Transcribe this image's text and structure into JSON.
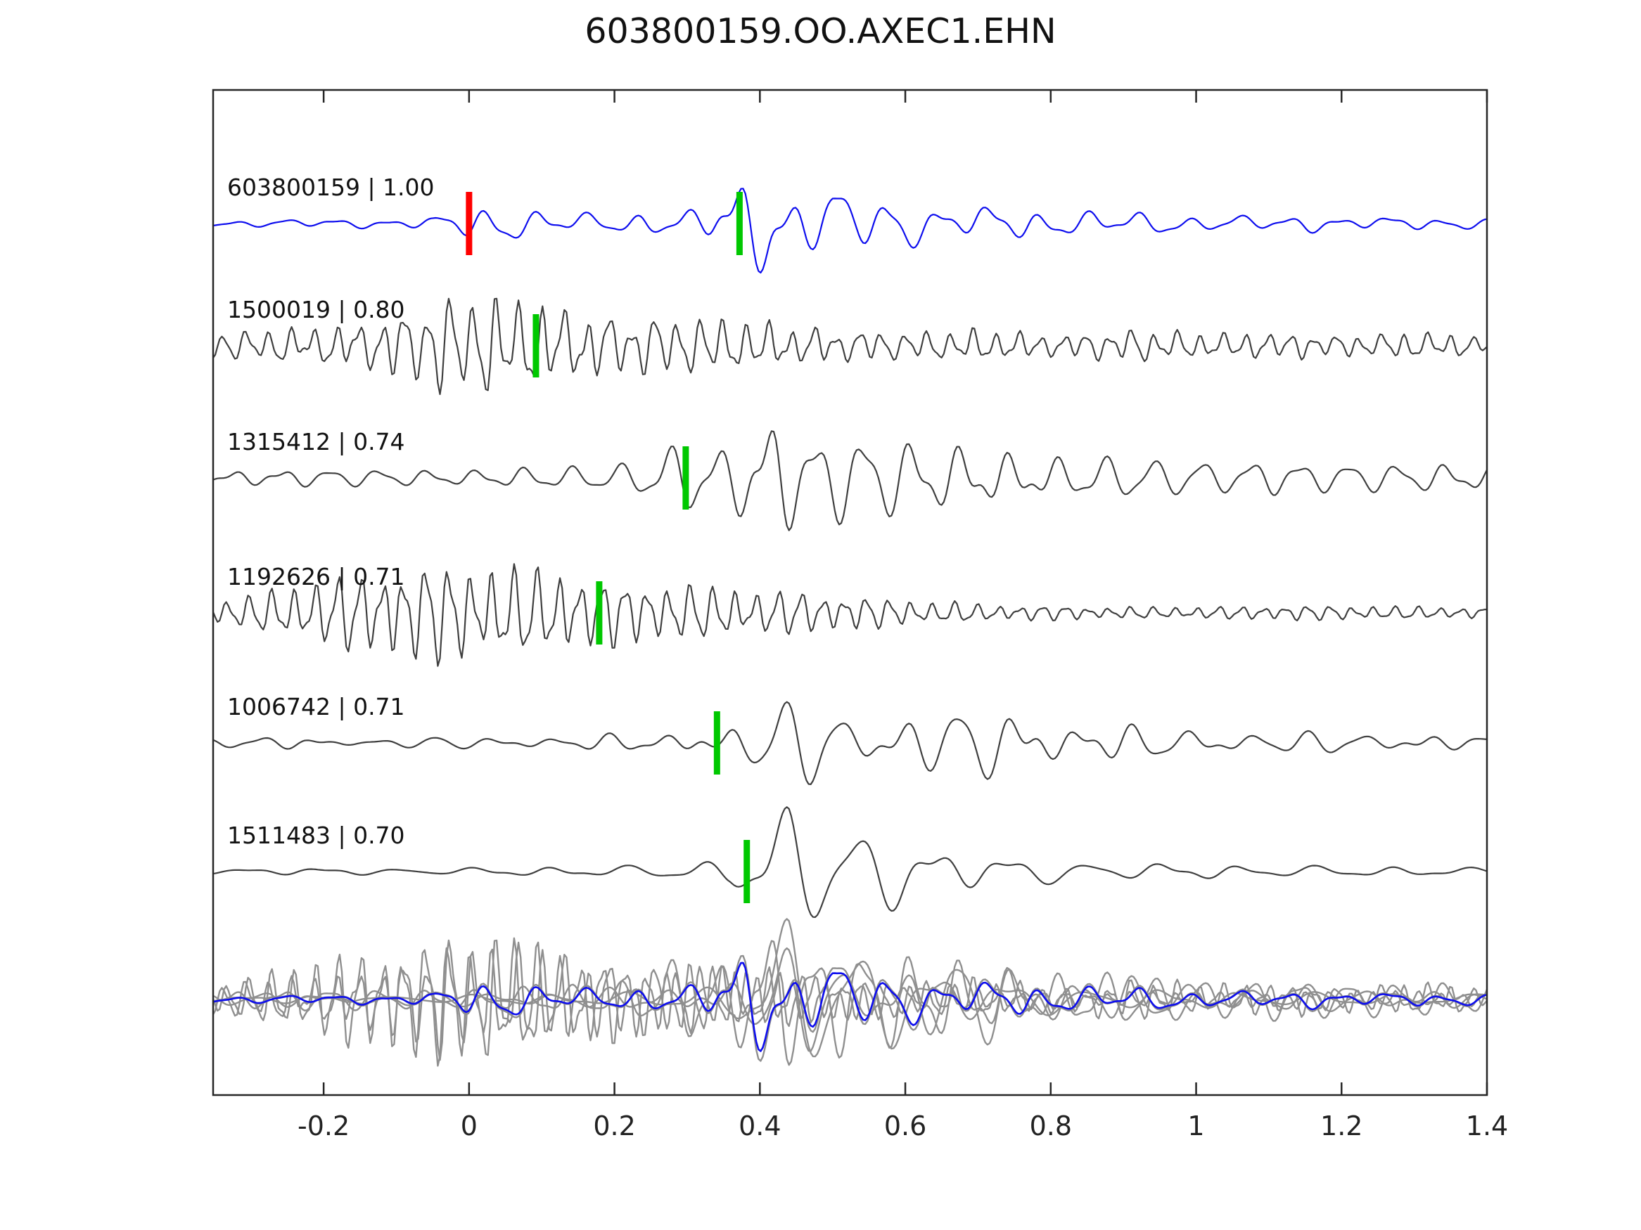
{
  "chart_data": {
    "type": "line",
    "title": "603800159.OO.AXEC1.EHN",
    "xlabel": "",
    "ylabel": "",
    "grid": false,
    "legend": "none",
    "axis": {
      "xlim": [
        -0.352,
        1.4
      ],
      "ticks": [
        {
          "value": -0.2,
          "label": "-0.2"
        },
        {
          "value": 0.0,
          "label": "0"
        },
        {
          "value": 0.2,
          "label": "0.2"
        },
        {
          "value": 0.4,
          "label": "0.4"
        },
        {
          "value": 0.6,
          "label": "0.6"
        },
        {
          "value": 0.8,
          "label": "0.8"
        },
        {
          "value": 1.0,
          "label": "1"
        },
        {
          "value": 1.2,
          "label": "1.2"
        },
        {
          "value": 1.4,
          "label": "1.4"
        }
      ]
    },
    "colors": {
      "template_trace": "#0d0dee",
      "detection_trace": "#3f3f3f",
      "overlay_gray": "#8f8f8f",
      "pick_green": "#00c800",
      "pick_red": "#ff0000",
      "spine": "#262626"
    },
    "traces": [
      {
        "id": "603800159",
        "cc": "1.00",
        "label": "603800159 | 1.00",
        "color": "#0d0dee",
        "freq": 14.5,
        "phase": -0.72,
        "noise": 0.55,
        "seed": 7,
        "picks": [
          {
            "x": 0.0,
            "color": "#ff0000"
          },
          {
            "x": 0.372,
            "color": "#00c800"
          }
        ],
        "envelope": [
          [
            -0.352,
            5
          ],
          [
            -0.25,
            7
          ],
          [
            -0.18,
            9
          ],
          [
            -0.12,
            7
          ],
          [
            -0.05,
            9
          ],
          [
            0.0,
            30
          ],
          [
            0.05,
            32
          ],
          [
            0.1,
            28
          ],
          [
            0.15,
            20
          ],
          [
            0.2,
            16
          ],
          [
            0.24,
            22
          ],
          [
            0.28,
            14
          ],
          [
            0.32,
            30
          ],
          [
            0.355,
            70
          ],
          [
            0.38,
            95
          ],
          [
            0.41,
            88
          ],
          [
            0.44,
            62
          ],
          [
            0.47,
            55
          ],
          [
            0.5,
            70
          ],
          [
            0.53,
            42
          ],
          [
            0.57,
            58
          ],
          [
            0.62,
            38
          ],
          [
            0.67,
            30
          ],
          [
            0.72,
            32
          ],
          [
            0.78,
            24
          ],
          [
            0.85,
            20
          ],
          [
            0.92,
            22
          ],
          [
            1.0,
            16
          ],
          [
            1.08,
            12
          ],
          [
            1.15,
            14
          ],
          [
            1.22,
            10
          ],
          [
            1.3,
            12
          ],
          [
            1.4,
            9
          ]
        ]
      },
      {
        "id": "1500019",
        "cc": "0.80",
        "label": "1500019 | 0.80",
        "color": "#3f3f3f",
        "freq": 32,
        "phase": 0.4,
        "noise": 0.5,
        "seed": 13,
        "picks": [
          {
            "x": 0.092,
            "color": "#00c800"
          }
        ],
        "envelope": [
          [
            -0.352,
            22
          ],
          [
            -0.3,
            26
          ],
          [
            -0.25,
            30
          ],
          [
            -0.2,
            34
          ],
          [
            -0.15,
            42
          ],
          [
            -0.1,
            58
          ],
          [
            -0.06,
            75
          ],
          [
            -0.02,
            88
          ],
          [
            0.02,
            86
          ],
          [
            0.06,
            82
          ],
          [
            0.1,
            74
          ],
          [
            0.14,
            64
          ],
          [
            0.18,
            56
          ],
          [
            0.22,
            52
          ],
          [
            0.27,
            50
          ],
          [
            0.32,
            47
          ],
          [
            0.37,
            44
          ],
          [
            0.42,
            38
          ],
          [
            0.47,
            33
          ],
          [
            0.52,
            29
          ],
          [
            0.57,
            26
          ],
          [
            0.62,
            23
          ],
          [
            0.67,
            26
          ],
          [
            0.72,
            28
          ],
          [
            0.77,
            23
          ],
          [
            0.82,
            21
          ],
          [
            0.87,
            26
          ],
          [
            0.92,
            28
          ],
          [
            0.97,
            23
          ],
          [
            1.02,
            20
          ],
          [
            1.07,
            23
          ],
          [
            1.12,
            25
          ],
          [
            1.17,
            21
          ],
          [
            1.22,
            18
          ],
          [
            1.27,
            21
          ],
          [
            1.32,
            22
          ],
          [
            1.37,
            18
          ],
          [
            1.4,
            16
          ]
        ]
      },
      {
        "id": "1315412",
        "cc": "0.74",
        "label": "1315412 | 0.74",
        "color": "#3f3f3f",
        "freq": 15,
        "phase": 0.69,
        "noise": 0.55,
        "seed": 21,
        "picks": [
          {
            "x": 0.298,
            "color": "#00c800"
          }
        ],
        "envelope": [
          [
            -0.352,
            8
          ],
          [
            -0.28,
            11
          ],
          [
            -0.2,
            14
          ],
          [
            -0.12,
            15
          ],
          [
            -0.05,
            12
          ],
          [
            0.02,
            13
          ],
          [
            0.08,
            16
          ],
          [
            0.14,
            19
          ],
          [
            0.2,
            21
          ],
          [
            0.24,
            32
          ],
          [
            0.27,
            55
          ],
          [
            0.3,
            62
          ],
          [
            0.33,
            45
          ],
          [
            0.36,
            52
          ],
          [
            0.39,
            88
          ],
          [
            0.42,
            90
          ],
          [
            0.45,
            72
          ],
          [
            0.48,
            62
          ],
          [
            0.52,
            74
          ],
          [
            0.56,
            64
          ],
          [
            0.6,
            58
          ],
          [
            0.65,
            52
          ],
          [
            0.7,
            44
          ],
          [
            0.75,
            34
          ],
          [
            0.8,
            30
          ],
          [
            0.85,
            33
          ],
          [
            0.9,
            36
          ],
          [
            0.95,
            30
          ],
          [
            1.0,
            30
          ],
          [
            1.05,
            27
          ],
          [
            1.1,
            30
          ],
          [
            1.15,
            26
          ],
          [
            1.2,
            25
          ],
          [
            1.25,
            23
          ],
          [
            1.3,
            22
          ],
          [
            1.35,
            20
          ],
          [
            1.4,
            18
          ]
        ]
      },
      {
        "id": "1192626",
        "cc": "0.71",
        "label": "1192626 | 0.71",
        "color": "#3f3f3f",
        "freq": 33,
        "phase": 1.2,
        "noise": 0.35,
        "seed": 29,
        "picks": [
          {
            "x": 0.179,
            "color": "#00c800"
          }
        ],
        "envelope": [
          [
            -0.352,
            18
          ],
          [
            -0.3,
            30
          ],
          [
            -0.25,
            44
          ],
          [
            -0.2,
            58
          ],
          [
            -0.15,
            70
          ],
          [
            -0.1,
            78
          ],
          [
            -0.05,
            84
          ],
          [
            0.0,
            84
          ],
          [
            0.05,
            79
          ],
          [
            0.1,
            72
          ],
          [
            0.15,
            62
          ],
          [
            0.2,
            55
          ],
          [
            0.25,
            48
          ],
          [
            0.3,
            45
          ],
          [
            0.35,
            41
          ],
          [
            0.4,
            37
          ],
          [
            0.45,
            33
          ],
          [
            0.5,
            30
          ],
          [
            0.55,
            26
          ],
          [
            0.6,
            21
          ],
          [
            0.65,
            18
          ],
          [
            0.7,
            15
          ],
          [
            0.75,
            13
          ],
          [
            0.8,
            12
          ],
          [
            0.85,
            11
          ],
          [
            0.9,
            10
          ],
          [
            0.95,
            10
          ],
          [
            1.0,
            10
          ],
          [
            1.05,
            11
          ],
          [
            1.1,
            12
          ],
          [
            1.15,
            12
          ],
          [
            1.2,
            12
          ],
          [
            1.25,
            11
          ],
          [
            1.3,
            10
          ],
          [
            1.35,
            9
          ],
          [
            1.4,
            9
          ]
        ]
      },
      {
        "id": "1006742",
        "cc": "0.71",
        "label": "1006742 | 0.71",
        "color": "#3f3f3f",
        "freq": 12.5,
        "phase": -1.1,
        "noise": 0.55,
        "seed": 37,
        "picks": [
          {
            "x": 0.341,
            "color": "#00c800"
          }
        ],
        "envelope": [
          [
            -0.352,
            7
          ],
          [
            -0.28,
            9
          ],
          [
            -0.2,
            11
          ],
          [
            -0.12,
            9
          ],
          [
            -0.05,
            10
          ],
          [
            0.02,
            12
          ],
          [
            0.08,
            14
          ],
          [
            0.14,
            12
          ],
          [
            0.2,
            14
          ],
          [
            0.26,
            16
          ],
          [
            0.31,
            20
          ],
          [
            0.35,
            26
          ],
          [
            0.39,
            48
          ],
          [
            0.43,
            72
          ],
          [
            0.47,
            80
          ],
          [
            0.51,
            70
          ],
          [
            0.55,
            72
          ],
          [
            0.6,
            64
          ],
          [
            0.65,
            60
          ],
          [
            0.7,
            62
          ],
          [
            0.75,
            50
          ],
          [
            0.8,
            43
          ],
          [
            0.85,
            36
          ],
          [
            0.9,
            31
          ],
          [
            0.95,
            28
          ],
          [
            1.0,
            26
          ],
          [
            1.05,
            23
          ],
          [
            1.1,
            22
          ],
          [
            1.15,
            20
          ],
          [
            1.2,
            19
          ],
          [
            1.25,
            17
          ],
          [
            1.3,
            16
          ],
          [
            1.35,
            14
          ],
          [
            1.4,
            13
          ]
        ]
      },
      {
        "id": "1511483",
        "cc": "0.70",
        "label": "1511483 | 0.70",
        "color": "#3f3f3f",
        "freq": 9.5,
        "phase": 1.1,
        "noise": 0.25,
        "seed": 43,
        "picks": [
          {
            "x": 0.382,
            "color": "#00c800"
          }
        ],
        "envelope": [
          [
            -0.352,
            4
          ],
          [
            -0.25,
            5
          ],
          [
            -0.15,
            5
          ],
          [
            -0.05,
            5
          ],
          [
            0.05,
            6
          ],
          [
            0.15,
            7
          ],
          [
            0.22,
            9
          ],
          [
            0.28,
            14
          ],
          [
            0.32,
            18
          ],
          [
            0.36,
            20
          ],
          [
            0.4,
            55
          ],
          [
            0.44,
            100
          ],
          [
            0.48,
            102
          ],
          [
            0.52,
            85
          ],
          [
            0.56,
            70
          ],
          [
            0.6,
            46
          ],
          [
            0.65,
            30
          ],
          [
            0.7,
            25
          ],
          [
            0.75,
            21
          ],
          [
            0.8,
            18
          ],
          [
            0.85,
            15
          ],
          [
            0.9,
            13
          ],
          [
            0.95,
            12
          ],
          [
            1.0,
            11
          ],
          [
            1.05,
            10
          ],
          [
            1.1,
            9
          ],
          [
            1.15,
            9
          ],
          [
            1.2,
            8
          ],
          [
            1.25,
            8
          ],
          [
            1.3,
            7
          ],
          [
            1.35,
            7
          ],
          [
            1.4,
            6
          ]
        ]
      }
    ],
    "overlay": {
      "gray_members": [
        1,
        2,
        3,
        4,
        5,
        0
      ],
      "blue_member": 0,
      "gray_scale": 1.25,
      "blue_scale": 1.05,
      "gray_color": "#8f8f8f",
      "blue_color": "#0d0dee"
    }
  }
}
